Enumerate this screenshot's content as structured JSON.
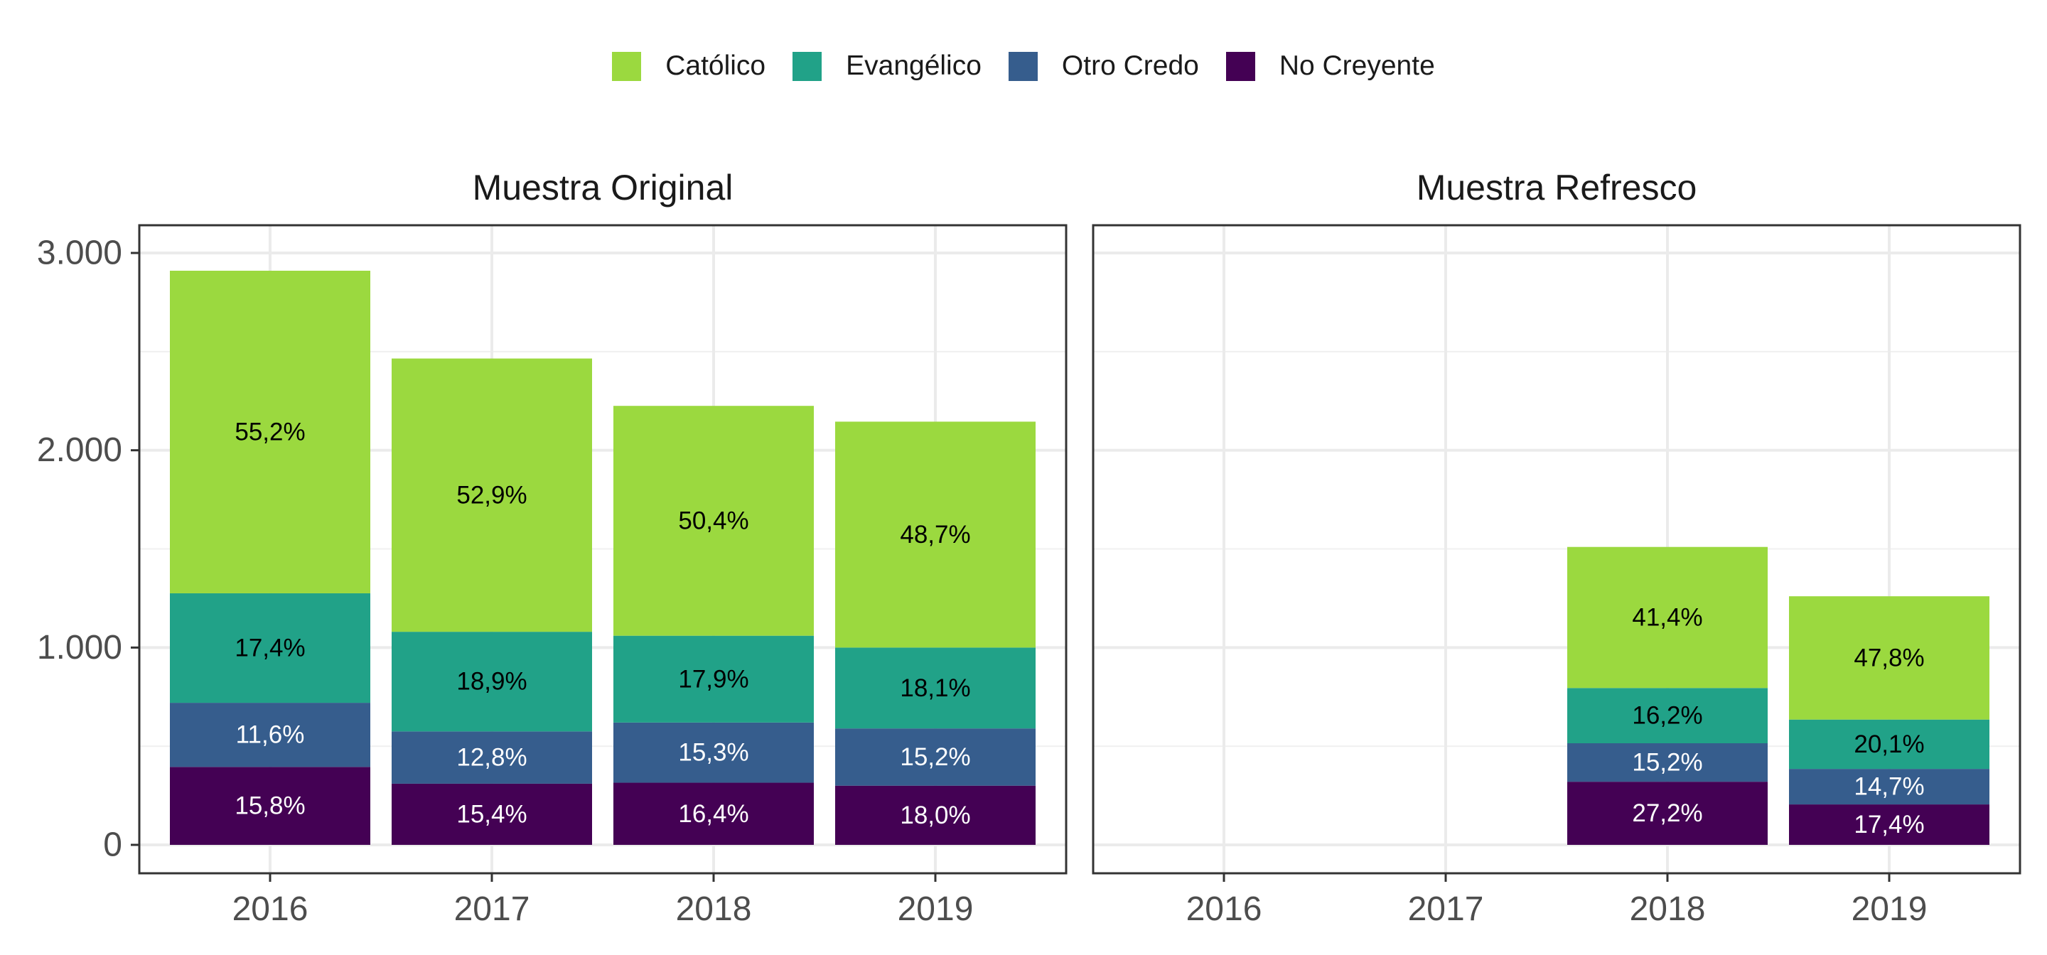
{
  "legend": {
    "items": [
      {
        "label": "Católico",
        "color": "#9bd93f"
      },
      {
        "label": "Evangélico",
        "color": "#21a288"
      },
      {
        "label": "Otro Credo",
        "color": "#365d8d"
      },
      {
        "label": "No Creyente",
        "color": "#440154"
      }
    ]
  },
  "chart_data": {
    "type": "bar",
    "stacked": true,
    "categories": [
      "2016",
      "2017",
      "2018",
      "2019"
    ],
    "ylim": [
      0,
      3000
    ],
    "y_ticks": [
      {
        "value": 0,
        "label": "0"
      },
      {
        "value": 1000,
        "label": "1.000"
      },
      {
        "value": 2000,
        "label": "2.000"
      },
      {
        "value": 3000,
        "label": "3.000"
      }
    ],
    "legend_position": "top",
    "grid": true,
    "panels": [
      {
        "title": "Muestra Original",
        "bars": [
          {
            "category": "2016",
            "segments": [
              {
                "series": "No Creyente",
                "value": 395,
                "label": "15,8%"
              },
              {
                "series": "Otro Credo",
                "value": 325,
                "label": "11,6%"
              },
              {
                "series": "Evangélico",
                "value": 555,
                "label": "17,4%"
              },
              {
                "series": "Católico",
                "value": 1635,
                "label": "55,2%"
              }
            ]
          },
          {
            "category": "2017",
            "segments": [
              {
                "series": "No Creyente",
                "value": 310,
                "label": "15,4%"
              },
              {
                "series": "Otro Credo",
                "value": 265,
                "label": "12,8%"
              },
              {
                "series": "Evangélico",
                "value": 505,
                "label": "18,9%"
              },
              {
                "series": "Católico",
                "value": 1385,
                "label": "52,9%"
              }
            ]
          },
          {
            "category": "2018",
            "segments": [
              {
                "series": "No Creyente",
                "value": 315,
                "label": "16,4%"
              },
              {
                "series": "Otro Credo",
                "value": 305,
                "label": "15,3%"
              },
              {
                "series": "Evangélico",
                "value": 440,
                "label": "17,9%"
              },
              {
                "series": "Católico",
                "value": 1165,
                "label": "50,4%"
              }
            ]
          },
          {
            "category": "2019",
            "segments": [
              {
                "series": "No Creyente",
                "value": 300,
                "label": "18,0%"
              },
              {
                "series": "Otro Credo",
                "value": 290,
                "label": "15,2%"
              },
              {
                "series": "Evangélico",
                "value": 410,
                "label": "18,1%"
              },
              {
                "series": "Católico",
                "value": 1145,
                "label": "48,7%"
              }
            ]
          }
        ]
      },
      {
        "title": "Muestra Refresco",
        "bars": [
          {
            "category": "2018",
            "segments": [
              {
                "series": "No Creyente",
                "value": 320,
                "label": "27,2%"
              },
              {
                "series": "Otro Credo",
                "value": 195,
                "label": "15,2%"
              },
              {
                "series": "Evangélico",
                "value": 280,
                "label": "16,2%"
              },
              {
                "series": "Católico",
                "value": 715,
                "label": "41,4%"
              }
            ]
          },
          {
            "category": "2019",
            "segments": [
              {
                "series": "No Creyente",
                "value": 205,
                "label": "17,4%"
              },
              {
                "series": "Otro Credo",
                "value": 180,
                "label": "14,7%"
              },
              {
                "series": "Evangélico",
                "value": 250,
                "label": "20,1%"
              },
              {
                "series": "Católico",
                "value": 625,
                "label": "47,8%"
              }
            ]
          }
        ]
      }
    ]
  }
}
